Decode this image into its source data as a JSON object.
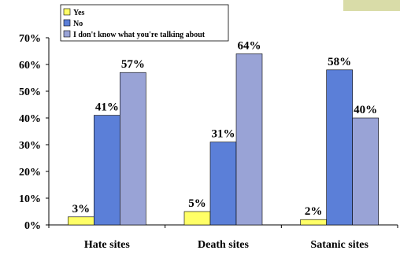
{
  "chart_data": {
    "type": "bar",
    "categories": [
      "Hate sites",
      "Death sites",
      "Satanic sites"
    ],
    "series": [
      {
        "name": "Yes",
        "values": [
          3,
          5,
          2
        ],
        "color": "#FFFF66"
      },
      {
        "name": "No",
        "values": [
          41,
          31,
          58
        ],
        "color": "#5B7FD8"
      },
      {
        "name": "I don't know what you're talking about",
        "values": [
          57,
          64,
          40
        ],
        "color": "#99A3D6"
      }
    ],
    "value_labels": [
      [
        "3%",
        "41%",
        "57%"
      ],
      [
        "5%",
        "31%",
        "64%"
      ],
      [
        "2%",
        "58%",
        "40%"
      ]
    ],
    "y_ticks": [
      "0%",
      "10%",
      "20%",
      "30%",
      "40%",
      "50%",
      "60%",
      "70%"
    ],
    "ylim": [
      0,
      70
    ],
    "legend_position": "top-center",
    "grid": false
  }
}
